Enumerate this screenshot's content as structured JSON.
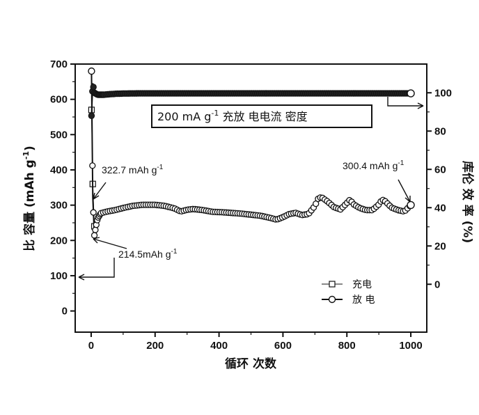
{
  "chart_data": {
    "type": "line",
    "xlabel": "循环 次数",
    "ylabel_left": "比 容量 (mAh g",
    "ylabel_left_sup": "-1",
    "ylabel_left_close": ")",
    "ylabel_right": "库伦 效 率 (%)",
    "xlim": [
      -50,
      1050
    ],
    "ylim_left": [
      -60,
      700
    ],
    "ylim_right": [
      -25,
      115
    ],
    "x_ticks": [
      0,
      200,
      400,
      600,
      800,
      1000
    ],
    "y_left_ticks": [
      0,
      100,
      200,
      300,
      400,
      500,
      600,
      700
    ],
    "y_right_ticks": [
      0,
      20,
      40,
      60,
      80,
      100
    ],
    "box_annotation": {
      "prefix": "200 mA g",
      "sup": "-1",
      "suffix": " 充放 电电流 密度"
    },
    "annotations": [
      {
        "id": "start-charge",
        "text": "322.7 mAh g",
        "sup": "-1"
      },
      {
        "id": "start-min",
        "text": "214.5mAh g",
        "sup": "-1"
      },
      {
        "id": "end-value",
        "text": "300.4 mAh g",
        "sup": "-1"
      }
    ],
    "legend": {
      "placement": "bottom-right",
      "entries": [
        {
          "label": "充电",
          "marker": "open-square"
        },
        {
          "label": "放 电",
          "marker": "open-circle"
        }
      ]
    },
    "series": [
      {
        "name": "充电",
        "axis": "left",
        "marker": "open-square",
        "x": [
          1,
          5,
          10
        ],
        "y": [
          570,
          360,
          240
        ]
      },
      {
        "name": "放 电",
        "axis": "left",
        "marker": "open-circle",
        "x": [
          1,
          5,
          10,
          15,
          20,
          30,
          50,
          75,
          100,
          130,
          160,
          200,
          230,
          260,
          280,
          300,
          320,
          350,
          380,
          410,
          440,
          470,
          500,
          530,
          560,
          580,
          600,
          620,
          640,
          660,
          680,
          700,
          710,
          720,
          740,
          760,
          780,
          800,
          810,
          820,
          840,
          860,
          880,
          900,
          910,
          920,
          940,
          960,
          980,
          1000
        ],
        "y": [
          680,
          322.7,
          214.5,
          240,
          262,
          277,
          282,
          286,
          292,
          298,
          301,
          301,
          298,
          291,
          282,
          287,
          289,
          286,
          281,
          280,
          278,
          276,
          273,
          270,
          264,
          259,
          266,
          275,
          278,
          272,
          275,
          298,
          318,
          323,
          310,
          294,
          288,
          306,
          316,
          303,
          292,
          286,
          286,
          302,
          316,
          311,
          293,
          286,
          282,
          300.4
        ]
      },
      {
        "name": "库伦效率",
        "axis": "right",
        "marker": "filled-circle",
        "x": [
          1,
          5,
          10,
          20,
          40,
          60,
          80,
          100,
          150,
          200,
          250,
          300,
          350,
          400,
          450,
          500,
          550,
          600,
          650,
          700,
          750,
          800,
          850,
          900,
          950,
          1000
        ],
        "y": [
          88,
          105,
          100,
          99,
          99,
          99.3,
          99.5,
          99.6,
          99.7,
          99.7,
          99.7,
          99.7,
          99.7,
          99.7,
          99.7,
          99.7,
          99.7,
          99.7,
          99.7,
          99.7,
          99.7,
          99.7,
          99.7,
          99.7,
          99.7,
          99.7
        ]
      }
    ]
  }
}
